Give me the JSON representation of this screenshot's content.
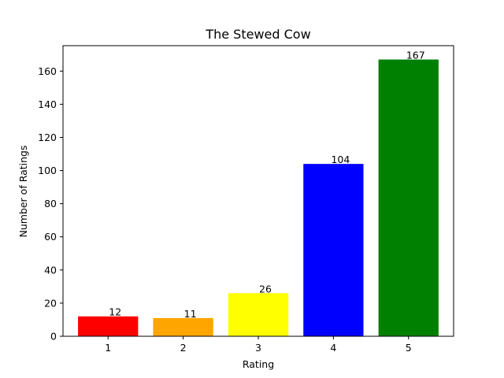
{
  "chart_data": {
    "type": "bar",
    "title": "The Stewed Cow",
    "xlabel": "Rating",
    "ylabel": "Number of Ratings",
    "categories": [
      "1",
      "2",
      "3",
      "4",
      "5"
    ],
    "values": [
      12,
      11,
      26,
      104,
      167
    ],
    "colors": [
      "#ff0000",
      "#ffa500",
      "#ffff00",
      "#0000ff",
      "#008000"
    ],
    "ylim": [
      0,
      175.35
    ],
    "yticks": [
      0,
      20,
      40,
      60,
      80,
      100,
      120,
      140,
      160
    ],
    "grid": false,
    "legend": "none"
  }
}
